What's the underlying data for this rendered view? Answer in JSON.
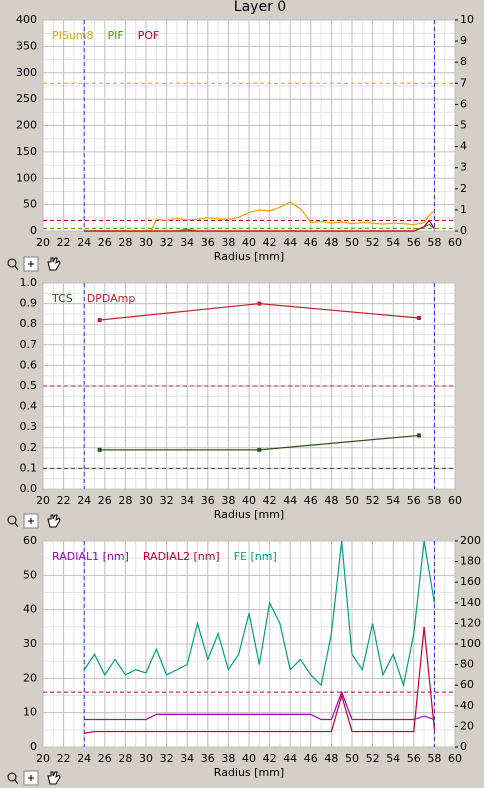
{
  "window_title": "Layer 0",
  "chart_data": [
    {
      "type": "line",
      "x_label": "Radius [mm]",
      "xlim": [
        20,
        60
      ],
      "xticks": [
        20,
        22,
        24,
        26,
        28,
        30,
        32,
        34,
        36,
        38,
        40,
        42,
        44,
        46,
        48,
        50,
        52,
        54,
        56,
        58,
        60
      ],
      "ylim": [
        0,
        400
      ],
      "yticks": [
        0,
        50,
        100,
        150,
        200,
        250,
        300,
        350,
        400
      ],
      "y2lim": [
        0,
        10
      ],
      "y2ticks": [
        0,
        1,
        2,
        3,
        4,
        5,
        6,
        7,
        8,
        9,
        10
      ],
      "grid": true,
      "marker_lines": [
        24,
        58
      ],
      "marker_line_color": "#3030ff",
      "reference_lines": [
        {
          "value": 280,
          "axis": "y",
          "color": "#e0a800"
        },
        {
          "value": 0.5,
          "axis": "y2",
          "color": "#c00020"
        },
        {
          "value": 5,
          "axis": "y",
          "color": "#40a000"
        }
      ],
      "x": [
        24,
        26,
        28,
        30,
        30.5,
        31,
        32,
        33,
        34,
        35,
        36,
        37,
        38,
        39,
        40,
        41,
        42,
        43,
        44,
        45,
        45.5,
        46,
        47,
        48,
        49,
        50,
        51,
        52,
        53,
        54,
        55,
        56,
        57,
        57.5,
        58
      ],
      "series": [
        {
          "name": "PISum8",
          "color": "#e0a800",
          "axis": "y",
          "values": [
            0,
            0,
            0,
            0,
            0,
            22,
            20,
            24,
            21,
            22,
            25,
            23,
            22,
            26,
            35,
            40,
            38,
            45,
            55,
            42,
            30,
            16,
            18,
            15,
            17,
            14,
            16,
            15,
            13,
            15,
            14,
            12,
            16,
            30,
            38
          ]
        },
        {
          "name": "PIF",
          "color": "#40a000",
          "axis": "y",
          "values": [
            0,
            0,
            0,
            0,
            0,
            0,
            0,
            0,
            3,
            0,
            0,
            0,
            0,
            0,
            0,
            0,
            0,
            0,
            0,
            0,
            0,
            0,
            0,
            0,
            0,
            0,
            0,
            0,
            0,
            0,
            0,
            0,
            8,
            12,
            5
          ]
        },
        {
          "name": "POF",
          "color": "#c00020",
          "axis": "y2",
          "values": [
            0,
            0,
            0,
            0,
            0,
            0,
            0,
            0,
            0,
            0,
            0,
            0,
            0,
            0,
            0,
            0,
            0,
            0,
            0,
            0,
            0,
            0,
            0,
            0,
            0,
            0,
            0,
            0,
            0,
            0,
            0,
            0,
            0.2,
            0.5,
            0.1
          ]
        }
      ]
    },
    {
      "type": "line",
      "x_label": "Radius [mm]",
      "xlim": [
        20,
        60
      ],
      "xticks": [
        20,
        22,
        24,
        26,
        28,
        30,
        32,
        34,
        36,
        38,
        40,
        42,
        44,
        46,
        48,
        50,
        52,
        54,
        56,
        58,
        60
      ],
      "ylim": [
        0,
        1
      ],
      "yticks": [
        {
          "value": 0,
          "label": "0.0"
        },
        0.1,
        0.2,
        0.3,
        0.4,
        0.5,
        0.6,
        0.7,
        0.8,
        0.9,
        {
          "value": 1,
          "label": "1.0"
        }
      ],
      "grid": true,
      "markers": true,
      "marker_lines": [
        24,
        58
      ],
      "marker_line_color": "#3030ff",
      "reference_lines": [
        {
          "value": 0.5,
          "axis": "y",
          "color": "#c02030"
        },
        {
          "value": 0.1,
          "axis": "y",
          "color": "#305020"
        }
      ],
      "x": [
        25.5,
        41,
        56.5
      ],
      "series": [
        {
          "name": "TCS",
          "color": "#305020",
          "axis": "y",
          "values": [
            0.19,
            0.19,
            0.26
          ]
        },
        {
          "name": "DPDAmp",
          "color": "#c02030",
          "axis": "y",
          "values": [
            0.82,
            0.9,
            0.83
          ]
        }
      ]
    },
    {
      "type": "line",
      "x_label": "Radius [mm]",
      "xlim": [
        20,
        60
      ],
      "xticks": [
        20,
        22,
        24,
        26,
        28,
        30,
        32,
        34,
        36,
        38,
        40,
        42,
        44,
        46,
        48,
        50,
        52,
        54,
        56,
        58,
        60
      ],
      "ylim": [
        0,
        60
      ],
      "yticks": [
        0,
        10,
        20,
        30,
        40,
        50,
        60
      ],
      "y2lim": [
        0,
        200
      ],
      "y2ticks": [
        0,
        20,
        40,
        60,
        80,
        100,
        120,
        140,
        160,
        180,
        200
      ],
      "grid": true,
      "marker_lines": [
        24,
        58
      ],
      "marker_line_color": "#3030ff",
      "reference_lines": [
        {
          "value": 16,
          "axis": "y",
          "color": "#c00030"
        }
      ],
      "x": [
        24,
        25,
        26,
        27,
        28,
        29,
        30,
        31,
        32,
        33,
        34,
        35,
        36,
        37,
        38,
        39,
        40,
        41,
        42,
        43,
        44,
        45,
        46,
        47,
        48,
        49,
        50,
        51,
        52,
        53,
        54,
        55,
        56,
        57,
        58
      ],
      "series": [
        {
          "name": "RADIAL1 [nm]",
          "color": "#a000c0",
          "axis": "y",
          "values": [
            8,
            8,
            8,
            8,
            8,
            8,
            8,
            9.5,
            9.5,
            9.5,
            9.5,
            9.5,
            9.5,
            9.5,
            9.5,
            9.5,
            9.5,
            9.5,
            9.5,
            9.5,
            9.5,
            9.5,
            9.5,
            8,
            8,
            16,
            8,
            8,
            8,
            8,
            8,
            8,
            8,
            9,
            8
          ]
        },
        {
          "name": "RADIAL2 [nm]",
          "color": "#c00030",
          "axis": "y",
          "values": [
            4,
            4.5,
            4.5,
            4.5,
            4.5,
            4.5,
            4.5,
            4.5,
            4.5,
            4.5,
            4.5,
            4.5,
            4.5,
            4.5,
            4.5,
            4.5,
            4.5,
            4.5,
            4.5,
            4.5,
            4.5,
            4.5,
            4.5,
            4.5,
            4.5,
            15,
            4.5,
            4.5,
            4.5,
            4.5,
            4.5,
            4.5,
            4.5,
            35,
            5
          ]
        },
        {
          "name": "FE [nm]",
          "color": "#00a080",
          "axis": "y2",
          "values": [
            75,
            90,
            70,
            85,
            70,
            75,
            72,
            95,
            70,
            75,
            80,
            120,
            85,
            110,
            75,
            90,
            130,
            80,
            140,
            120,
            75,
            85,
            70,
            60,
            110,
            200,
            90,
            75,
            120,
            70,
            90,
            60,
            110,
            200,
            140
          ]
        }
      ]
    }
  ]
}
